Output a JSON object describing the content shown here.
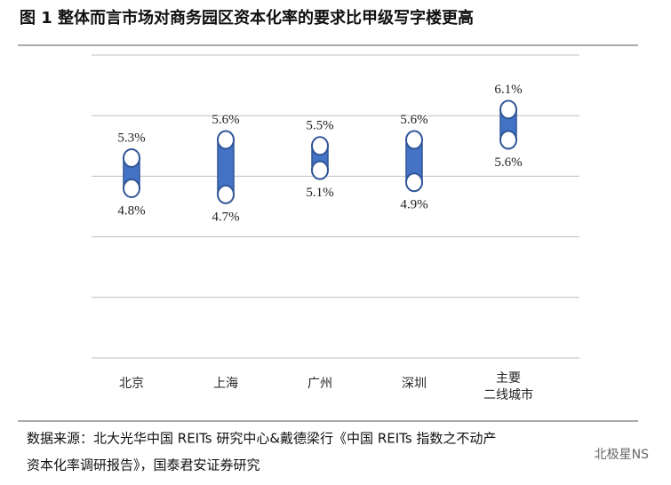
{
  "title": "图 1 整体而言市场对商务园区资本化率的要求比甲级写字楼更高",
  "chart_data": {
    "type": "range",
    "categories": [
      "北京",
      "上海",
      "广州",
      "深圳",
      "主要\n二线城市"
    ],
    "low": [
      4.8,
      4.7,
      5.1,
      4.9,
      5.6
    ],
    "high": [
      5.3,
      5.6,
      5.5,
      5.6,
      6.1
    ],
    "low_labels": [
      "4.8%",
      "4.7%",
      "5.1%",
      "4.9%",
      "5.6%"
    ],
    "high_labels": [
      "5.3%",
      "5.6%",
      "5.5%",
      "5.6%",
      "6.1%"
    ],
    "color": "#4472c4",
    "ylim": [
      2,
      7
    ],
    "yticks": [
      2,
      3,
      4,
      5,
      6,
      7
    ],
    "grid": true
  },
  "source": [
    "数据来源：北大光华中国 REITs 研究中心&戴德梁行《中国 REITs 指数之不动产",
    "资本化率调研报告》，国泰君安证券研究"
  ],
  "watermark": "北极星NS"
}
